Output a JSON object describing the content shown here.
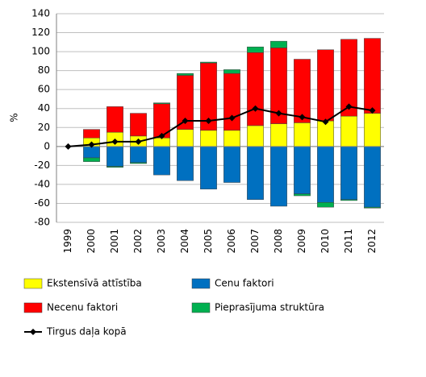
{
  "chart_data": {
    "type": "bar",
    "stacked": true,
    "y_label": "%",
    "categories": [
      "1999",
      "2000",
      "2001",
      "2002",
      "2003",
      "2004",
      "2005",
      "2006",
      "2007",
      "2008",
      "2009",
      "2010",
      "2011",
      "2012"
    ],
    "series": [
      {
        "name": "Ekstensīvā attīstība",
        "color": "#ffff00",
        "values": [
          0,
          9,
          15,
          11,
          9,
          18,
          17,
          17,
          22,
          24,
          25,
          27,
          32,
          35
        ]
      },
      {
        "name": "Cenu faktori",
        "color": "#0070c0",
        "values": [
          0,
          -12,
          -21,
          -17,
          -30,
          -36,
          -45,
          -38,
          -56,
          -63,
          -50,
          -59,
          -56,
          -64
        ]
      },
      {
        "name": "Necenu faktori",
        "color": "#ff0000",
        "values": [
          0,
          9,
          27,
          24,
          36,
          57,
          71,
          60,
          77,
          80,
          67,
          75,
          81,
          79
        ]
      },
      {
        "name": "Pieprasījuma struktūra",
        "color": "#00b050",
        "values": [
          0,
          -4,
          -1,
          -1,
          1,
          2,
          1,
          4,
          6,
          7,
          -2,
          -5,
          -1,
          -1
        ]
      },
      {
        "name": "Tirgus daļa kopā",
        "color": "#000000",
        "type": "line",
        "values": [
          0,
          2,
          5,
          5,
          11,
          27,
          27,
          30,
          40,
          35,
          31,
          26,
          42,
          38
        ]
      }
    ],
    "ylim": [
      -80,
      140
    ],
    "yticks": [
      -80,
      -60,
      -40,
      -20,
      0,
      20,
      40,
      60,
      80,
      100,
      120,
      140
    ],
    "grid": true
  }
}
